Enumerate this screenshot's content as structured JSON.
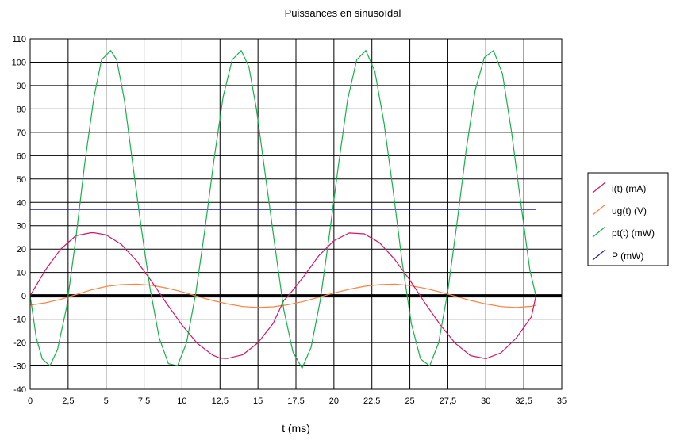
{
  "chart_data": {
    "type": "line",
    "title": "Puissances en sinusoïdal",
    "xlabel": "t (ms)",
    "ylabel": "",
    "xlim": [
      0,
      35
    ],
    "ylim": [
      -40,
      110
    ],
    "x_ticks": [
      "0",
      "2,5",
      "5",
      "7,5",
      "10",
      "12,5",
      "15",
      "17,5",
      "20",
      "22,5",
      "25",
      "27,5",
      "30",
      "32,5",
      "35"
    ],
    "y_ticks": [
      "-40",
      "-30",
      "-20",
      "-10",
      "0",
      "10",
      "20",
      "30",
      "40",
      "50",
      "60",
      "70",
      "80",
      "90",
      "100",
      "110"
    ],
    "grid": true,
    "legend_position": "right",
    "series": [
      {
        "name": "i(t) (mA)",
        "color": "#d4146a",
        "x": [
          0,
          1,
          2,
          3,
          4,
          4.2,
          5,
          6,
          7,
          8,
          9,
          10,
          11,
          12,
          12.5,
          13,
          14,
          15,
          16,
          16.7,
          17,
          18,
          19,
          20,
          21,
          22,
          23,
          24,
          25,
          26,
          27,
          28,
          29,
          30,
          31,
          32,
          33,
          33.3
        ],
        "y": [
          0,
          11,
          19.9,
          25.7,
          27,
          27,
          26.1,
          22,
          15,
          6.2,
          -3.4,
          -12.5,
          -20.3,
          -25.3,
          -26.7,
          -26.8,
          -25.2,
          -20.1,
          -11.8,
          -2,
          0,
          8.2,
          17.1,
          23.6,
          26.9,
          26.5,
          22.7,
          15.6,
          6.7,
          -3.1,
          -12.4,
          -20.4,
          -25.6,
          -26.9,
          -24.4,
          -18.1,
          -9,
          0
        ]
      },
      {
        "name": "ug(t) (V)",
        "color": "#ff8040",
        "x": [
          0,
          1,
          2,
          3,
          4,
          5,
          6,
          7,
          8,
          9,
          10,
          11,
          12,
          13,
          14,
          15,
          16,
          17,
          18,
          19,
          20,
          21,
          22,
          23,
          24,
          25,
          26,
          27,
          28,
          29,
          30,
          31,
          32,
          33,
          33.3
        ],
        "y": [
          -4,
          -3,
          -1.5,
          0.5,
          2.5,
          4,
          4.8,
          5,
          4.5,
          3.3,
          1.7,
          -0.2,
          -2,
          -3.5,
          -4.6,
          -5,
          -4.7,
          -3.8,
          -2.4,
          -0.6,
          1.2,
          2.8,
          4.1,
          4.8,
          5,
          4.4,
          3.2,
          1.6,
          -0.2,
          -2,
          -3.5,
          -4.6,
          -5,
          -4.5,
          -4
        ]
      },
      {
        "name": "pt(t) (mW)",
        "color": "#19b04b",
        "x": [
          0,
          0.4,
          0.8,
          1.3,
          1.8,
          2.4,
          3,
          3.6,
          4.2,
          4.7,
          5.3,
          5.7,
          6.2,
          6.7,
          7.3,
          7.9,
          8.5,
          9.1,
          9.7,
          10.3,
          10.9,
          11.5,
          12.1,
          12.7,
          13.3,
          13.9,
          14.4,
          14.9,
          15.5,
          16.1,
          16.7,
          17.3,
          17.9,
          18.5,
          19.1,
          19.7,
          20.3,
          20.9,
          21.5,
          22.1,
          22.7,
          23.3,
          23.9,
          24.5,
          25.1,
          25.7,
          26.3,
          26.9,
          27.5,
          28.1,
          28.7,
          29.3,
          29.9,
          30.5,
          31.1,
          31.7,
          32.3,
          32.9,
          33.3
        ],
        "y": [
          0,
          -18,
          -27,
          -30,
          -23,
          -5,
          24,
          57,
          85,
          101,
          105,
          101,
          84,
          59,
          30,
          3,
          -18,
          -29,
          -30,
          -20,
          1,
          28,
          58,
          85,
          101,
          105,
          98,
          80,
          51,
          22,
          -6,
          -24,
          -31,
          -22,
          -2,
          26,
          56,
          84,
          101,
          105,
          96,
          74,
          45,
          14,
          -12,
          -27,
          -30,
          -20,
          2,
          31,
          62,
          88,
          102,
          105,
          95,
          70,
          40,
          11,
          0
        ]
      },
      {
        "name": "P (mW)",
        "color": "#1a1aa0",
        "x": [
          0,
          33.3
        ],
        "y": [
          37,
          37
        ]
      }
    ]
  }
}
